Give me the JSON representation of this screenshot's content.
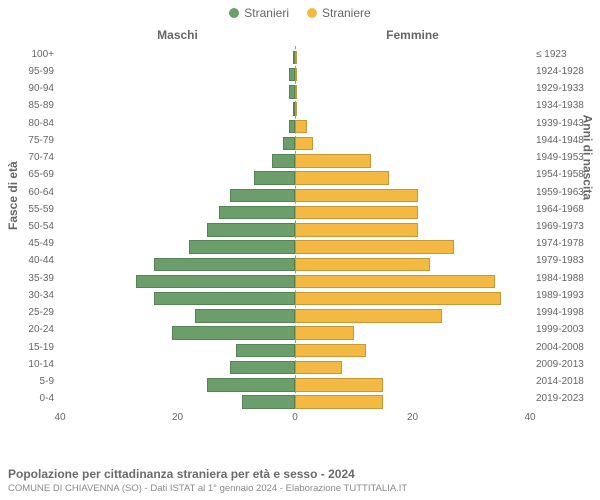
{
  "legend": {
    "male_label": "Stranieri",
    "female_label": "Straniere",
    "male_color": "#6b9e6b",
    "female_color": "#f4b942"
  },
  "chart": {
    "type": "population-pyramid",
    "col_left_header": "Maschi",
    "col_right_header": "Femmine",
    "y_left_title": "Fasce di età",
    "y_right_title": "Anni di nascita",
    "x_max": 40,
    "x_ticks_left": [
      40,
      20,
      0
    ],
    "x_ticks_right": [
      0,
      20,
      40
    ],
    "bar_border_color": "rgba(0,0,0,0.18)",
    "centerline_color": "#999999",
    "background_color": "#ffffff",
    "text_color": "#666666",
    "rows": [
      {
        "age": "100+",
        "year": "≤ 1923",
        "m": 0,
        "f": 0
      },
      {
        "age": "95-99",
        "year": "1924-1928",
        "m": 1,
        "f": 0
      },
      {
        "age": "90-94",
        "year": "1929-1933",
        "m": 1,
        "f": 0
      },
      {
        "age": "85-89",
        "year": "1934-1938",
        "m": 0,
        "f": 0
      },
      {
        "age": "80-84",
        "year": "1939-1943",
        "m": 1,
        "f": 2
      },
      {
        "age": "75-79",
        "year": "1944-1948",
        "m": 2,
        "f": 3
      },
      {
        "age": "70-74",
        "year": "1949-1953",
        "m": 4,
        "f": 13
      },
      {
        "age": "65-69",
        "year": "1954-1958",
        "m": 7,
        "f": 16
      },
      {
        "age": "60-64",
        "year": "1959-1963",
        "m": 11,
        "f": 21
      },
      {
        "age": "55-59",
        "year": "1964-1968",
        "m": 13,
        "f": 21
      },
      {
        "age": "50-54",
        "year": "1969-1973",
        "m": 15,
        "f": 21
      },
      {
        "age": "45-49",
        "year": "1974-1978",
        "m": 18,
        "f": 27
      },
      {
        "age": "40-44",
        "year": "1979-1983",
        "m": 24,
        "f": 23
      },
      {
        "age": "35-39",
        "year": "1984-1988",
        "m": 27,
        "f": 34
      },
      {
        "age": "30-34",
        "year": "1989-1993",
        "m": 24,
        "f": 35
      },
      {
        "age": "25-29",
        "year": "1994-1998",
        "m": 17,
        "f": 25
      },
      {
        "age": "20-24",
        "year": "1999-2003",
        "m": 21,
        "f": 10
      },
      {
        "age": "15-19",
        "year": "2004-2008",
        "m": 10,
        "f": 12
      },
      {
        "age": "10-14",
        "year": "2009-2013",
        "m": 11,
        "f": 8
      },
      {
        "age": "5-9",
        "year": "2014-2018",
        "m": 15,
        "f": 15
      },
      {
        "age": "0-4",
        "year": "2019-2023",
        "m": 9,
        "f": 15
      }
    ]
  },
  "footer": {
    "title": "Popolazione per cittadinanza straniera per età e sesso - 2024",
    "subtitle": "COMUNE DI CHIAVENNA (SO) - Dati ISTAT al 1° gennaio 2024 - Elaborazione TUTTITALIA.IT"
  }
}
